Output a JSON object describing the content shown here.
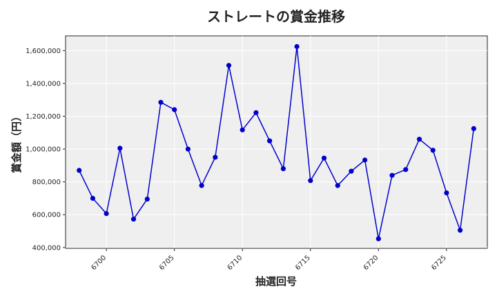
{
  "chart_data": {
    "type": "line",
    "title": "ストレートの賞金推移",
    "xlabel": "抽選回号",
    "ylabel": "賞金額（円）",
    "x": [
      6698,
      6699,
      6700,
      6701,
      6702,
      6703,
      6704,
      6705,
      6706,
      6707,
      6708,
      6709,
      6710,
      6711,
      6712,
      6713,
      6714,
      6715,
      6716,
      6717,
      6718,
      6719,
      6720,
      6721,
      6722,
      6723,
      6724,
      6725,
      6726,
      6727
    ],
    "series": [
      {
        "values": [
          870000,
          700000,
          607000,
          1005000,
          573000,
          695000,
          1285000,
          1240000,
          1000000,
          778000,
          950000,
          1510000,
          1117000,
          1222000,
          1050000,
          880000,
          1625000,
          808000,
          945000,
          778000,
          865000,
          933000,
          453000,
          840000,
          875000,
          1060000,
          993000,
          733000,
          505000,
          1125000
        ],
        "color": "#0000cc"
      }
    ],
    "xlim": [
      6697,
      6728
    ],
    "ylim": [
      395000,
      1690000
    ],
    "xticks": [
      6700,
      6705,
      6710,
      6715,
      6720,
      6725
    ],
    "yticks": [
      400000,
      600000,
      800000,
      1000000,
      1200000,
      1400000,
      1600000
    ],
    "ytick_labels": [
      "400,000",
      "600,000",
      "800,000",
      "1,000,000",
      "1,200,000",
      "1,400,000",
      "1,600,000"
    ],
    "grid": true,
    "plot_background": "#efefef",
    "legend": "none"
  }
}
